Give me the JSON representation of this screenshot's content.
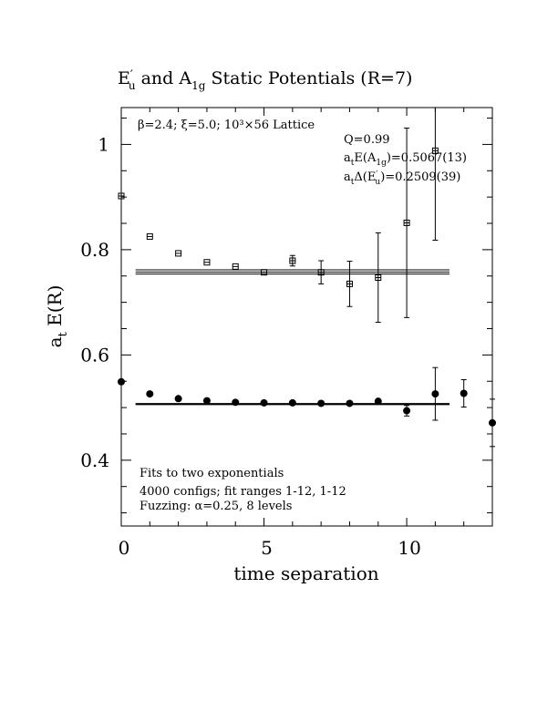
{
  "chart_data": {
    "type": "scatter",
    "title_parts": {
      "e_main": "E",
      "e_prime": "′",
      "e_sub": "u",
      "and": " and A",
      "a_sub": "1g",
      "rest": " Static Potentials (R=7)"
    },
    "xlabel": "time separation",
    "ylabel_main": "a",
    "ylabel_sub": "t",
    "ylabel_rest": " E(R)",
    "xlim": [
      0,
      13
    ],
    "ylim": [
      0.275,
      1.07
    ],
    "xticks": [
      0,
      5,
      10
    ],
    "yticks": [
      0.4,
      0.6,
      0.8,
      1
    ],
    "xtick_labels": [
      "0",
      "5",
      "10"
    ],
    "ytick_labels": [
      "0.4",
      "0.6",
      "0.8",
      "1"
    ],
    "annotations": {
      "lattice": "β=2.4; ξ=5.0; 10³×56 Lattice",
      "q": "Q=0.99",
      "energy_main": "a",
      "energy_sub": "t",
      "energy_mid": "E(A",
      "energy_sub2": "1g",
      "energy_val": ")=0.5067(13)",
      "delta_main": "a",
      "delta_sub": "t",
      "delta_mid": "Δ(E",
      "delta_prime": "′",
      "delta_sub2": "u",
      "delta_val": ")=0.2509(39)",
      "fits": "Fits to two exponentials",
      "configs": "4000 configs; fit ranges 1-12, 1-12",
      "fuzzing": "Fuzzing: α=0.25, 8 levels"
    },
    "series": [
      {
        "marker": "open-square",
        "x": [
          0,
          1,
          2,
          3,
          4,
          5,
          6,
          7,
          8,
          9,
          10,
          11
        ],
        "y": [
          0.902,
          0.825,
          0.793,
          0.776,
          0.768,
          0.757,
          0.779,
          0.757,
          0.735,
          0.747,
          0.851,
          0.988
        ],
        "err": [
          0.002,
          0.003,
          0.004,
          0.004,
          0.005,
          0.005,
          0.01,
          0.022,
          0.043,
          0.085,
          0.18,
          0.17
        ],
        "fit": {
          "x": [
            0.5,
            11.5
          ],
          "y": 0.7576,
          "band": 0.004
        }
      },
      {
        "marker": "filled-circle",
        "x": [
          0,
          1,
          2,
          3,
          4,
          5,
          6,
          7,
          8,
          9,
          10,
          11,
          12,
          13
        ],
        "y": [
          0.549,
          0.526,
          0.517,
          0.513,
          0.51,
          0.509,
          0.509,
          0.508,
          0.508,
          0.512,
          0.494,
          0.526,
          0.527,
          0.471
        ],
        "err": [
          0.001,
          0.001,
          0.002,
          0.002,
          0.002,
          0.002,
          0.003,
          0.003,
          0.004,
          0.005,
          0.01,
          0.05,
          0.026,
          0.045
        ],
        "fit": {
          "x": [
            0.5,
            11.5
          ],
          "y": 0.5067,
          "band": 0.0013
        }
      }
    ]
  }
}
